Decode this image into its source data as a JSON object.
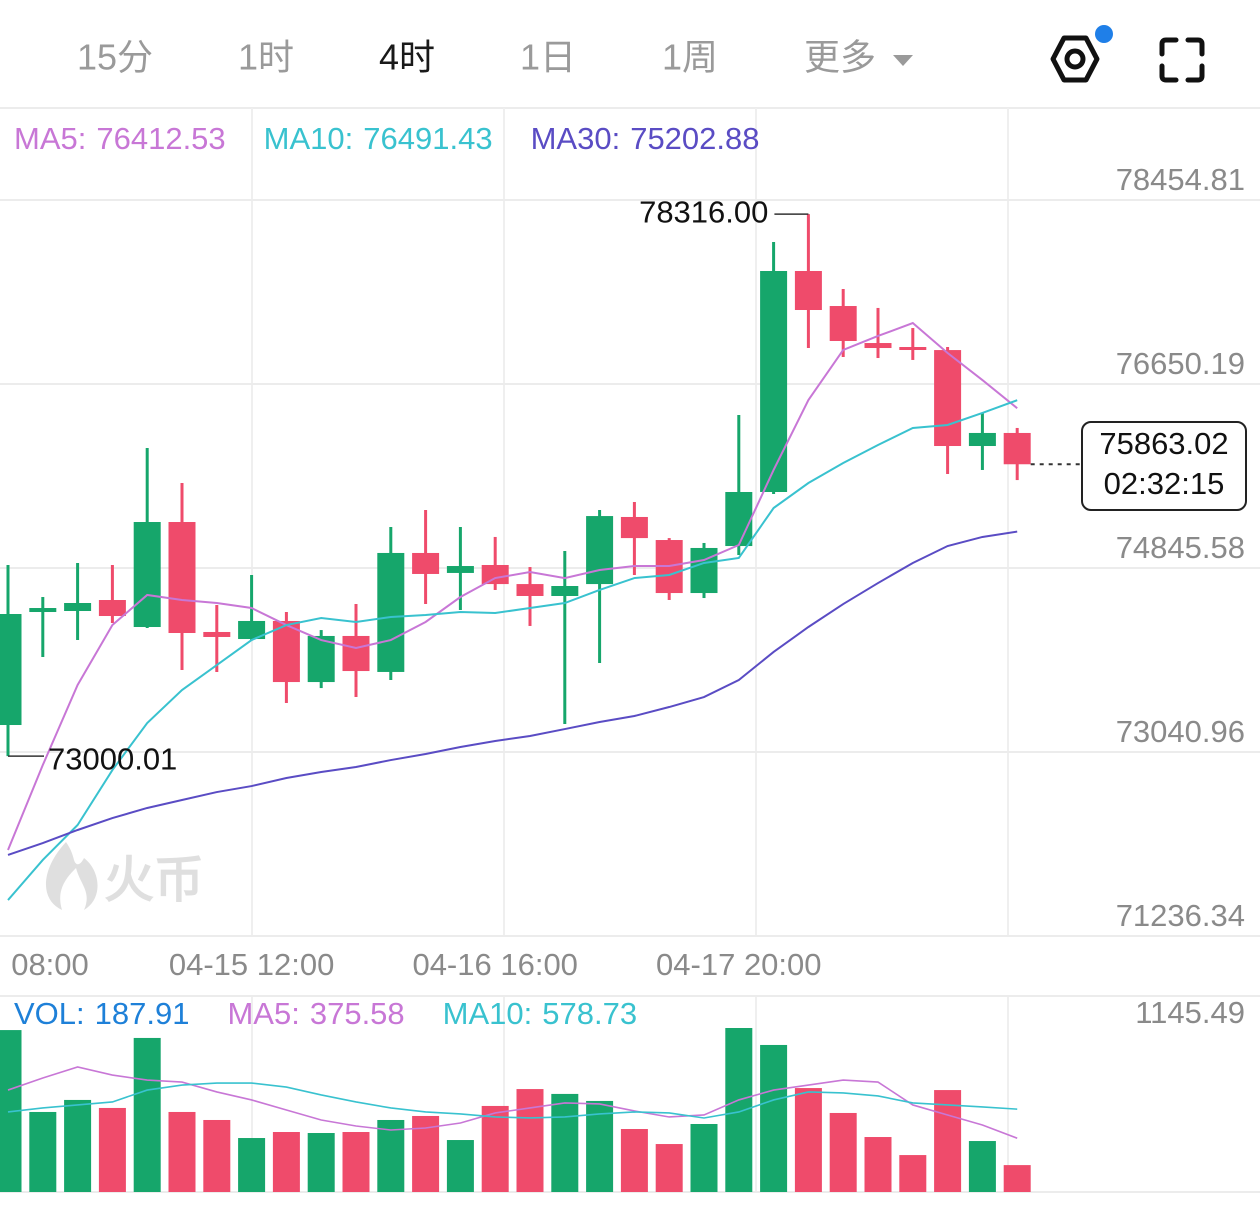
{
  "toolbar": {
    "tabs": [
      "15分",
      "1时",
      "4时",
      "1日",
      "1周",
      "更多"
    ],
    "active": 2
  },
  "watermark": "火币",
  "chart_data": [
    {
      "type": "candlestick",
      "categories": [
        null,
        "08:00",
        null,
        null,
        null,
        null,
        null,
        "04-15 12:00",
        null,
        null,
        null,
        null,
        null,
        null,
        "04-16 16:00",
        null,
        null,
        null,
        null,
        null,
        null,
        "04-17 20:00",
        null,
        null,
        null,
        null,
        null,
        null,
        null,
        null
      ],
      "open": [
        73305.6,
        74413.9,
        74423.8,
        74531.6,
        74266.8,
        75296.6,
        74218,
        74149,
        74326,
        73727,
        74179,
        73826,
        74993,
        74797,
        74875,
        74688,
        74571,
        74688,
        75346,
        75120,
        74600,
        75061,
        75591,
        77758.5,
        77415,
        77052,
        77013,
        76983,
        76042,
        76170
      ],
      "high": [
        74874.9,
        74561,
        74894.5,
        74874.9,
        76022.4,
        75679,
        74483,
        74777,
        74414,
        74237,
        74493,
        75248,
        75414,
        75248,
        75150,
        74855,
        75012,
        75414,
        75493,
        75139,
        75091,
        76346,
        78042.9,
        78316,
        77582,
        77396,
        77199,
        77013,
        76366,
        76219
      ],
      "low": [
        73000.01,
        73972.6,
        74139.3,
        74306,
        74257,
        73845,
        73826,
        74139,
        73521,
        73668,
        73580,
        73747,
        74493,
        74434,
        74630,
        74277,
        73316,
        73914,
        74777,
        74532,
        74551,
        74973,
        75571,
        77003,
        76915,
        76905,
        76886,
        75767,
        75807,
        75708
      ],
      "close": [
        74394.3,
        74453.1,
        74502.3,
        74374.7,
        75296.6,
        74208,
        74169,
        74326,
        73727,
        74179,
        73835,
        74993,
        74787,
        74865,
        74688,
        74571,
        74669,
        75355,
        75139,
        74600,
        75042,
        75591,
        77758.5,
        77375.9,
        77072,
        77003,
        76993,
        76042,
        76170,
        75863.02
      ],
      "up_color": "#16a66b",
      "down_color": "#ef4b6b",
      "max_label": "78316.00",
      "countdown": "02:32:15",
      "series": [
        {
          "name": "MA5:",
          "color": "#c877d6",
          "values": [
            72079.6,
            72913,
            73698,
            74286,
            74581,
            74532,
            74502,
            74453,
            74286,
            74139,
            74061,
            74139,
            74316,
            74561,
            74747,
            74806,
            74747,
            74826,
            74865,
            74865,
            74924,
            75071,
            75807,
            76493,
            76984,
            77121,
            77248,
            76954,
            76689,
            76412.53
          ]
        },
        {
          "name": "MA10:",
          "color": "#39c2cf",
          "values": [
            71589,
            71982,
            72325,
            72864,
            73325,
            73649,
            73894,
            74139,
            74286,
            74355,
            74316,
            74365,
            74385,
            74414,
            74404,
            74453,
            74502,
            74630,
            74747,
            74777,
            74895,
            74944,
            75434,
            75679,
            75875,
            76052,
            76219,
            76248,
            76366,
            76491.43
          ]
        },
        {
          "name": "MA30:",
          "color": "#5a4cc4",
          "values": [
            72031,
            72148,
            72276,
            72393,
            72492,
            72570,
            72648,
            72707,
            72786,
            72845,
            72894,
            72962,
            73021,
            73090,
            73149,
            73198,
            73266,
            73335,
            73394,
            73482,
            73580,
            73747,
            74022,
            74267,
            74492,
            74698,
            74895,
            75061,
            75150,
            75202.88
          ]
        }
      ],
      "ylim": [
        71236.34,
        79357.1
      ],
      "yticks": [
        78454.81,
        76650.19,
        74845.58,
        73040.96,
        71236.34
      ],
      "grid": true
    },
    {
      "type": "bar",
      "name": "VOL:",
      "color": "#1e80d8",
      "values": [
        1131,
        559,
        643,
        587,
        1076,
        559,
        503,
        377,
        419,
        412,
        419,
        503,
        531,
        363,
        601,
        719,
        685,
        636,
        440,
        335,
        475,
        1145.49,
        1027,
        726,
        552,
        384,
        258,
        712,
        356,
        187.91
      ],
      "series": [
        {
          "name": "MA5:",
          "color": "#c877d6",
          "values": [
            712,
            796,
            873,
            817,
            782,
            768,
            699,
            643,
            573,
            503,
            461,
            433,
            447,
            482,
            552,
            587,
            622,
            615,
            566,
            524,
            538,
            643,
            712,
            747,
            782,
            768,
            608,
            538,
            468,
            375.58
          ]
        },
        {
          "name": "MA10:",
          "color": "#39c2cf",
          "values": [
            559,
            587,
            608,
            629,
            712,
            747,
            761,
            761,
            733,
            678,
            629,
            587,
            559,
            545,
            524,
            517,
            524,
            545,
            559,
            552,
            517,
            559,
            643,
            699,
            692,
            671,
            622,
            608,
            594,
            578.73
          ]
        }
      ],
      "ylim": [
        0,
        1145.49
      ],
      "yticks": [
        1145.49
      ]
    }
  ]
}
